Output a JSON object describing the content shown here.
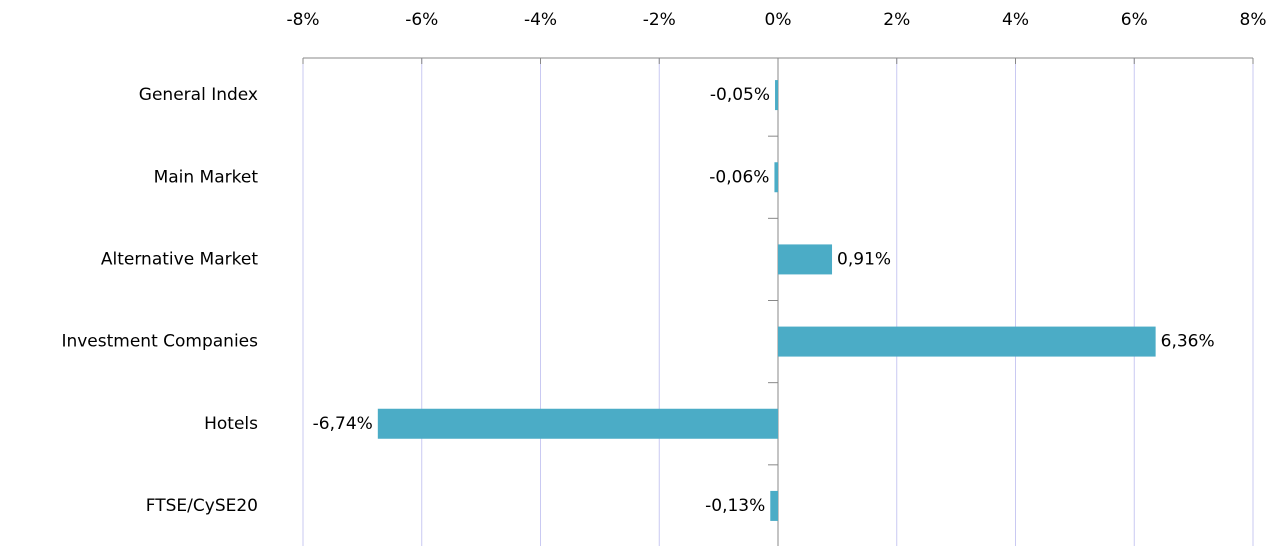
{
  "chart_data": {
    "type": "bar",
    "orientation": "horizontal",
    "categories": [
      "General Index",
      "Main Market",
      "Alternative Market",
      "Investment Companies",
      "Hotels",
      "FTSE/CySE20"
    ],
    "values": [
      -0.05,
      -0.06,
      0.91,
      6.36,
      -6.74,
      -0.13
    ],
    "value_labels": [
      "-0,05%",
      "-0,06%",
      "0,91%",
      "6,36%",
      "-6,74%",
      "-0,13%"
    ],
    "color": "#4bacc6",
    "xlim": [
      -8,
      8
    ],
    "xticks": [
      {
        "value": -8,
        "label": "-8%"
      },
      {
        "value": -6,
        "label": "-6%"
      },
      {
        "value": -4,
        "label": "-4%"
      },
      {
        "value": -2,
        "label": "-2%"
      },
      {
        "value": 0,
        "label": "0%"
      },
      {
        "value": 2,
        "label": "2%"
      },
      {
        "value": 4,
        "label": "4%"
      },
      {
        "value": 6,
        "label": "6%"
      },
      {
        "value": 8,
        "label": "8%"
      }
    ],
    "grid": true
  }
}
